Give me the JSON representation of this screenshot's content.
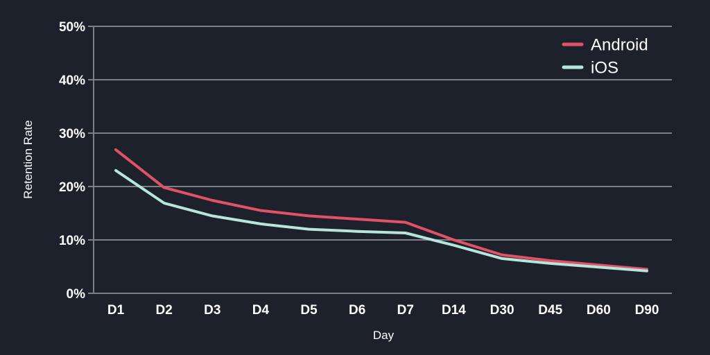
{
  "page": {
    "background": "#1c212b"
  },
  "chart_data": {
    "type": "line",
    "title": "",
    "xlabel": "Day",
    "ylabel": "Retention Rate",
    "categories": [
      "D1",
      "D2",
      "D3",
      "D4",
      "D5",
      "D6",
      "D7",
      "D14",
      "D30",
      "D45",
      "D60",
      "D90"
    ],
    "series": [
      {
        "name": "Android",
        "color": "#e15266",
        "values": [
          26.9,
          19.8,
          17.4,
          15.5,
          14.5,
          13.9,
          13.3,
          10.0,
          7.2,
          6.1,
          5.3,
          4.5
        ]
      },
      {
        "name": "iOS",
        "color": "#b6e5db",
        "values": [
          23.0,
          16.9,
          14.5,
          13.0,
          12.0,
          11.6,
          11.3,
          9.0,
          6.5,
          5.6,
          4.9,
          4.2
        ]
      }
    ],
    "ylim": [
      0,
      50
    ],
    "yticks": [
      0,
      10,
      20,
      30,
      40,
      50
    ],
    "ytick_labels": [
      "0%",
      "10%",
      "20%",
      "30%",
      "40%",
      "50%"
    ],
    "grid": true,
    "legend_position": "top-right",
    "colors": {
      "text": "#ffffff",
      "grid": "#7d8086",
      "axis": "#7d8086",
      "background": "#1c212b"
    }
  }
}
